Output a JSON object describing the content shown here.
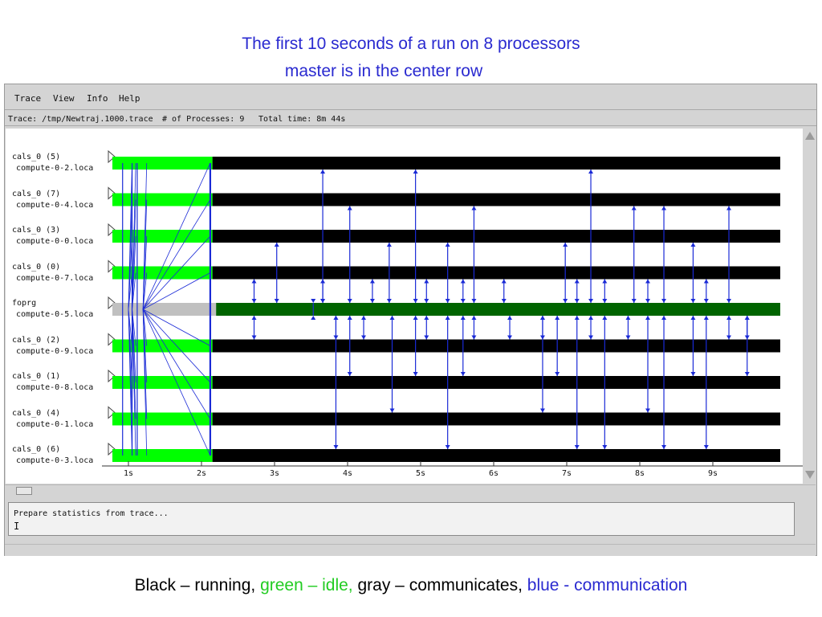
{
  "slide": {
    "title_line1": "The first 10 seconds of a run on 8 processors",
    "title_line2": "master is in the center row"
  },
  "menu": [
    "Trace",
    "View",
    "Info",
    "Help"
  ],
  "info": {
    "trace": "Trace: /tmp/Newtraj.1000.trace",
    "processes": "# of Processes: 9",
    "total_time": "Total time: 8m 44s"
  },
  "processes": [
    {
      "name": "cals_0 (5)",
      "host": "compute-0-2.loca",
      "master": false
    },
    {
      "name": "cals_0 (7)",
      "host": "compute-0-4.loca",
      "master": false
    },
    {
      "name": "cals_0 (3)",
      "host": "compute-0-0.loca",
      "master": false
    },
    {
      "name": "cals_0 (0)",
      "host": "compute-0-7.loca",
      "master": false
    },
    {
      "name": "foprg",
      "host": "compute-0-5.loca",
      "master": true
    },
    {
      "name": "cals_0 (2)",
      "host": "compute-0-9.loca",
      "master": false
    },
    {
      "name": "cals_0 (1)",
      "host": "compute-0-8.loca",
      "master": false
    },
    {
      "name": "cals_0 (4)",
      "host": "compute-0-1.loca",
      "master": false
    },
    {
      "name": "cals_0 (6)",
      "host": "compute-0-3.loca",
      "master": false
    }
  ],
  "time_axis": {
    "ticks": [
      "1s",
      "2s",
      "3s",
      "4s",
      "5s",
      "6s",
      "7s",
      "8s",
      "9s"
    ]
  },
  "messages": [
    {
      "t": 2.72,
      "worker": 3
    },
    {
      "t": 2.72,
      "worker": 5
    },
    {
      "t": 3.03,
      "worker": 2
    },
    {
      "t": 3.53,
      "worker": 4
    },
    {
      "t": 3.66,
      "worker": 0
    },
    {
      "t": 3.66,
      "worker": 3
    },
    {
      "t": 3.84,
      "worker": 5
    },
    {
      "t": 3.84,
      "worker": 8
    },
    {
      "t": 4.03,
      "worker": 1
    },
    {
      "t": 4.03,
      "worker": 6
    },
    {
      "t": 4.34,
      "worker": 3
    },
    {
      "t": 4.22,
      "worker": 5
    },
    {
      "t": 4.57,
      "worker": 2
    },
    {
      "t": 4.61,
      "worker": 7
    },
    {
      "t": 4.93,
      "worker": 0
    },
    {
      "t": 4.93,
      "worker": 6
    },
    {
      "t": 5.08,
      "worker": 3
    },
    {
      "t": 5.08,
      "worker": 5
    },
    {
      "t": 5.37,
      "worker": 2
    },
    {
      "t": 5.37,
      "worker": 8
    },
    {
      "t": 5.58,
      "worker": 3
    },
    {
      "t": 5.58,
      "worker": 6
    },
    {
      "t": 5.73,
      "worker": 1
    },
    {
      "t": 5.73,
      "worker": 5
    },
    {
      "t": 6.14,
      "worker": 3
    },
    {
      "t": 6.22,
      "worker": 5
    },
    {
      "t": 6.67,
      "worker": 5
    },
    {
      "t": 6.67,
      "worker": 7
    },
    {
      "t": 6.98,
      "worker": 2
    },
    {
      "t": 6.87,
      "worker": 6
    },
    {
      "t": 7.14,
      "worker": 3
    },
    {
      "t": 7.14,
      "worker": 8
    },
    {
      "t": 7.33,
      "worker": 0
    },
    {
      "t": 7.33,
      "worker": 5
    },
    {
      "t": 7.52,
      "worker": 3
    },
    {
      "t": 7.52,
      "worker": 8
    },
    {
      "t": 7.92,
      "worker": 1
    },
    {
      "t": 7.84,
      "worker": 5
    },
    {
      "t": 8.11,
      "worker": 3
    },
    {
      "t": 8.11,
      "worker": 7
    },
    {
      "t": 8.33,
      "worker": 1
    },
    {
      "t": 8.33,
      "worker": 8
    },
    {
      "t": 8.73,
      "worker": 2
    },
    {
      "t": 8.73,
      "worker": 6
    },
    {
      "t": 8.91,
      "worker": 3
    },
    {
      "t": 8.91,
      "worker": 8
    },
    {
      "t": 9.22,
      "worker": 1
    },
    {
      "t": 9.22,
      "worker": 5
    },
    {
      "t": 9.47,
      "worker": 6
    },
    {
      "t": 9.47,
      "worker": 5
    }
  ],
  "status_message": "Prepare statistics from trace...",
  "legend": {
    "black": "Black – running,",
    "green": "green – idle,",
    "gray": "gray – communicates,",
    "blue": "blue - communication"
  },
  "colors": {
    "running": "#000000",
    "idle": "#00ff00",
    "master_running": "#006400",
    "master_comm": "#c0c0c0",
    "message": "#1a2ad6"
  }
}
